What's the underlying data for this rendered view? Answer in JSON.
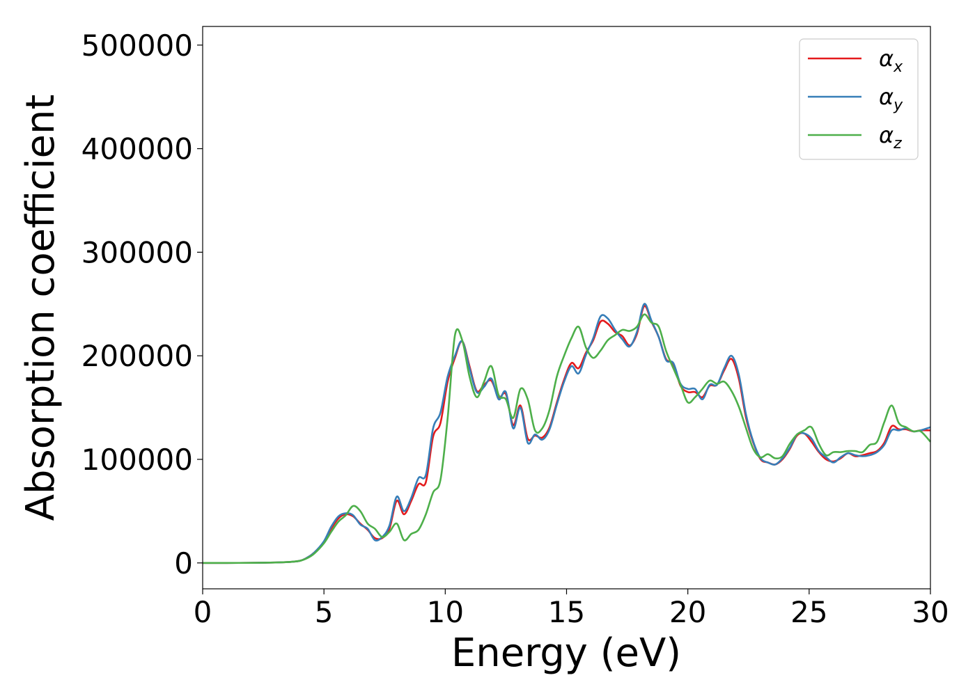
{
  "chart_data": {
    "type": "line",
    "xlabel": "Energy (eV)",
    "ylabel": "Absorption coefficient",
    "xlim": [
      0,
      30
    ],
    "ylim": [
      -25000,
      518000
    ],
    "xticks": [
      "0",
      "5",
      "10",
      "15",
      "20",
      "25",
      "30"
    ],
    "yticks": [
      "0",
      "100000",
      "200000",
      "300000",
      "400000",
      "500000"
    ],
    "grid": false,
    "legend_position": "top-right",
    "series": [
      {
        "name": "α",
        "subscript": "x",
        "color": "#e41a1c",
        "x": [
          0,
          1,
          2,
          3,
          3.5,
          4,
          4.3,
          4.6,
          5,
          5.3,
          5.6,
          5.9,
          6.2,
          6.5,
          6.8,
          7.1,
          7.4,
          7.7,
          8.0,
          8.3,
          8.6,
          8.9,
          9.2,
          9.5,
          9.8,
          10.1,
          10.4,
          10.7,
          11.0,
          11.3,
          11.6,
          11.9,
          12.2,
          12.5,
          12.8,
          13.1,
          13.4,
          13.7,
          14.0,
          14.3,
          14.6,
          14.9,
          15.2,
          15.5,
          15.8,
          16.1,
          16.4,
          16.7,
          17.0,
          17.3,
          17.6,
          17.9,
          18.2,
          18.5,
          18.8,
          19.1,
          19.4,
          19.7,
          20.0,
          20.3,
          20.6,
          20.9,
          21.2,
          21.5,
          21.8,
          22.1,
          22.4,
          22.7,
          23.0,
          23.3,
          23.6,
          23.9,
          24.2,
          24.5,
          24.8,
          25.1,
          25.4,
          25.7,
          26.0,
          26.3,
          26.6,
          26.9,
          27.2,
          27.5,
          27.8,
          28.1,
          28.4,
          28.7,
          29.0,
          29.3,
          29.6,
          30.0
        ],
        "y": [
          0,
          0,
          100,
          400,
          800,
          2000,
          5000,
          10000,
          20000,
          33000,
          43000,
          47000,
          45000,
          38000,
          32000,
          24000,
          24000,
          33000,
          60000,
          47000,
          60000,
          76000,
          78000,
          122000,
          135000,
          175000,
          198000,
          214000,
          190000,
          166000,
          172000,
          176000,
          160000,
          163000,
          133000,
          152000,
          120000,
          123000,
          121000,
          131000,
          155000,
          177000,
          193000,
          188000,
          203000,
          215000,
          233000,
          231000,
          223000,
          219000,
          210000,
          221000,
          248000,
          233000,
          218000,
          197000,
          192000,
          171000,
          165000,
          165000,
          160000,
          171000,
          172000,
          186000,
          197000,
          178000,
          140000,
          116000,
          100000,
          97000,
          95000,
          100000,
          110000,
          123000,
          125000,
          117000,
          107000,
          100000,
          98000,
          101000,
          106000,
          103000,
          104000,
          106000,
          108000,
          116000,
          132000,
          129000,
          129000,
          127000,
          128000,
          128000
        ]
      },
      {
        "name": "α",
        "subscript": "y",
        "color": "#377eb8",
        "x": [
          0,
          1,
          2,
          3,
          3.5,
          4,
          4.3,
          4.6,
          5,
          5.3,
          5.6,
          5.9,
          6.2,
          6.5,
          6.8,
          7.1,
          7.4,
          7.7,
          8.0,
          8.3,
          8.6,
          8.9,
          9.2,
          9.5,
          9.8,
          10.1,
          10.4,
          10.7,
          11.0,
          11.3,
          11.6,
          11.9,
          12.2,
          12.5,
          12.8,
          13.1,
          13.4,
          13.7,
          14.0,
          14.3,
          14.6,
          14.9,
          15.2,
          15.5,
          15.8,
          16.1,
          16.4,
          16.7,
          17.0,
          17.3,
          17.6,
          17.9,
          18.2,
          18.5,
          18.8,
          19.1,
          19.4,
          19.7,
          20.0,
          20.3,
          20.6,
          20.9,
          21.2,
          21.5,
          21.8,
          22.1,
          22.4,
          22.7,
          23.0,
          23.3,
          23.6,
          23.9,
          24.2,
          24.5,
          24.8,
          25.1,
          25.4,
          25.7,
          26.0,
          26.3,
          26.6,
          26.9,
          27.2,
          27.5,
          27.8,
          28.1,
          28.4,
          28.7,
          29.0,
          29.3,
          29.6,
          30.0
        ],
        "y": [
          0,
          0,
          100,
          400,
          800,
          2000,
          5000,
          10000,
          21000,
          35000,
          45000,
          48000,
          46000,
          37000,
          33000,
          22000,
          25000,
          36000,
          64000,
          50000,
          63000,
          82000,
          85000,
          130000,
          145000,
          180000,
          200000,
          214000,
          188000,
          165000,
          170000,
          178000,
          158000,
          165000,
          130000,
          150000,
          116000,
          124000,
          119000,
          129000,
          153000,
          175000,
          190000,
          183000,
          201000,
          217000,
          238000,
          236000,
          225000,
          216000,
          209000,
          223000,
          250000,
          234000,
          218000,
          196000,
          193000,
          173000,
          168000,
          168000,
          158000,
          172000,
          172000,
          188000,
          200000,
          182000,
          143000,
          117000,
          101000,
          97000,
          95000,
          101000,
          111000,
          124000,
          125000,
          120000,
          108000,
          102000,
          97000,
          102000,
          106000,
          104000,
          103000,
          104000,
          107000,
          114000,
          128000,
          128000,
          130000,
          127000,
          128000,
          131000
        ]
      },
      {
        "name": "α",
        "subscript": "z",
        "color": "#4daf4a",
        "x": [
          0,
          1,
          2,
          3,
          3.5,
          4,
          4.3,
          4.6,
          5,
          5.3,
          5.6,
          5.9,
          6.2,
          6.5,
          6.8,
          7.1,
          7.4,
          7.7,
          8.0,
          8.3,
          8.6,
          8.9,
          9.2,
          9.5,
          9.8,
          10.1,
          10.4,
          10.7,
          11.0,
          11.3,
          11.6,
          11.9,
          12.2,
          12.5,
          12.8,
          13.1,
          13.4,
          13.7,
          14.0,
          14.3,
          14.6,
          14.9,
          15.2,
          15.5,
          15.8,
          16.1,
          16.4,
          16.7,
          17.0,
          17.3,
          17.6,
          17.9,
          18.2,
          18.5,
          18.8,
          19.1,
          19.4,
          19.7,
          20.0,
          20.3,
          20.6,
          20.9,
          21.2,
          21.5,
          21.8,
          22.1,
          22.4,
          22.7,
          23.0,
          23.3,
          23.6,
          23.9,
          24.2,
          24.5,
          24.8,
          25.1,
          25.4,
          25.7,
          26.0,
          26.3,
          26.6,
          26.9,
          27.2,
          27.5,
          27.8,
          28.1,
          28.4,
          28.7,
          29.0,
          29.3,
          29.6,
          30.0
        ],
        "y": [
          0,
          0,
          100,
          400,
          800,
          2000,
          4500,
          9000,
          19000,
          30000,
          40000,
          46000,
          55000,
          50000,
          38000,
          33000,
          25000,
          30000,
          38000,
          22000,
          28000,
          32000,
          47000,
          68000,
          80000,
          140000,
          220000,
          215000,
          180000,
          160000,
          175000,
          190000,
          162000,
          158000,
          140000,
          168000,
          158000,
          128000,
          130000,
          148000,
          180000,
          200000,
          217000,
          228000,
          208000,
          198000,
          205000,
          215000,
          220000,
          225000,
          224000,
          228000,
          240000,
          232000,
          228000,
          205000,
          188000,
          172000,
          155000,
          160000,
          168000,
          176000,
          173000,
          175000,
          166000,
          151000,
          130000,
          110000,
          102000,
          105000,
          101000,
          103000,
          115000,
          124000,
          128000,
          131000,
          115000,
          104000,
          107000,
          107000,
          108000,
          108000,
          107000,
          114000,
          117000,
          136000,
          152000,
          135000,
          131000,
          127000,
          127000,
          117000
        ]
      }
    ]
  }
}
